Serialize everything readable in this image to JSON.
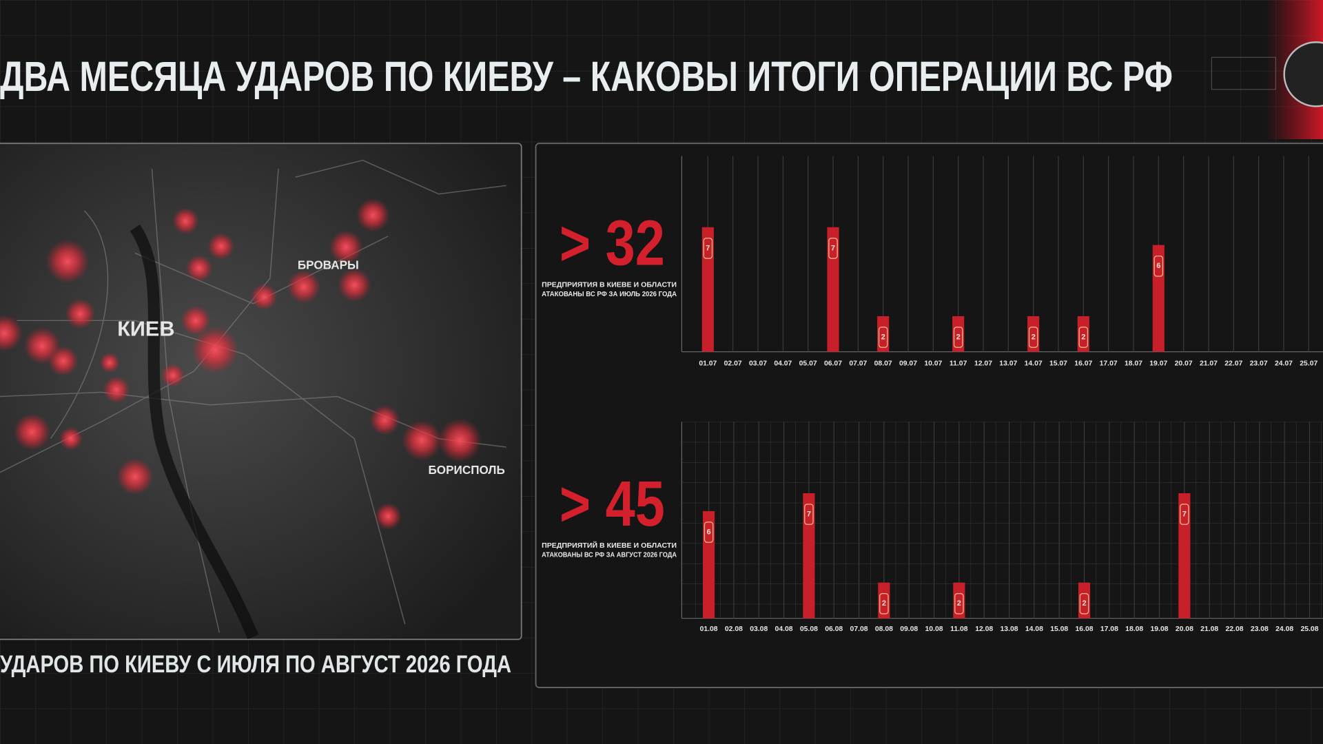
{
  "header": {
    "title": "ДВА МЕСЯЦА УДАРОВ ПО КИЕВУ – КАКОВЫ ИТОГИ ОПЕРАЦИИ ВС РФ"
  },
  "map": {
    "labels": [
      "КИЕВ",
      "БРОВАРЫ",
      "БОРИСПОЛЬ"
    ],
    "caption": "УДАРОВ ПО КИЕВУ С ИЮЛЯ ПО АВГУСТ 2026 ГОДА"
  },
  "chart_data": [
    {
      "type": "bar",
      "stat": "> 32",
      "subtitle": [
        "ПРЕДПРИЯТИЯ В КИЕВЕ И ОБЛАСТИ",
        "АТАКОВАНЫ ВС РФ ЗА ИЮЛЬ 2026 ГОДА"
      ],
      "categories": [
        "01.07",
        "02.07",
        "03.07",
        "04.07",
        "05.07",
        "06.07",
        "07.07",
        "08.07",
        "09.07",
        "10.07",
        "11.07",
        "12.07",
        "13.07",
        "14.07",
        "15.07",
        "16.07",
        "17.07",
        "18.07",
        "19.07",
        "20.07",
        "21.07",
        "22.07",
        "23.07",
        "24.07",
        "25.07"
      ],
      "values": [
        7,
        0,
        0,
        0,
        0,
        7,
        0,
        2,
        0,
        0,
        2,
        0,
        0,
        2,
        0,
        2,
        0,
        0,
        6,
        0,
        0,
        0,
        0,
        0,
        0
      ],
      "color": "#c8202a",
      "ylim": [
        0,
        11
      ]
    },
    {
      "type": "bar",
      "stat": "> 45",
      "subtitle": [
        "ПРЕДПРИЯТИЙ В КИЕВЕ И ОБЛАСТИ",
        "АТАКОВАНЫ ВС РФ ЗА АВГУСТ 2026 ГОДА"
      ],
      "categories": [
        "01.08",
        "02.08",
        "03.08",
        "04.08",
        "05.08",
        "06.08",
        "07.08",
        "08.08",
        "09.08",
        "10.08",
        "11.08",
        "12.08",
        "13.08",
        "14.08",
        "15.08",
        "16.08",
        "17.08",
        "18.08",
        "19.08",
        "20.08",
        "21.08",
        "22.08",
        "23.08",
        "24.08",
        "25.08"
      ],
      "values": [
        6,
        0,
        0,
        0,
        7,
        0,
        0,
        2,
        0,
        0,
        2,
        0,
        0,
        0,
        0,
        2,
        0,
        0,
        0,
        7,
        0,
        0,
        0,
        0,
        0
      ],
      "color": "#c8202a",
      "ylim": [
        0,
        11
      ]
    }
  ]
}
